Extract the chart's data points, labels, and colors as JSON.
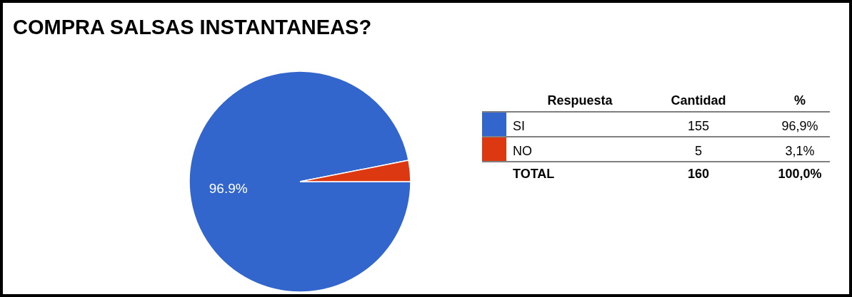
{
  "chart_data": {
    "type": "pie",
    "title": "COMPRA SALSAS INSTANTANEAS?",
    "categories": [
      "SI",
      "NO"
    ],
    "values": [
      96.9,
      3.1
    ],
    "colors": [
      "#3366cc",
      "#dc3912"
    ],
    "value_labels": [
      "96.9%",
      null
    ],
    "legend": "right",
    "annotations": [
      "Respuesta",
      "Cantidad",
      "%",
      "155",
      "96,9%",
      "5",
      "3,1%",
      "TOTAL",
      "160",
      "100,0%"
    ]
  }
}
